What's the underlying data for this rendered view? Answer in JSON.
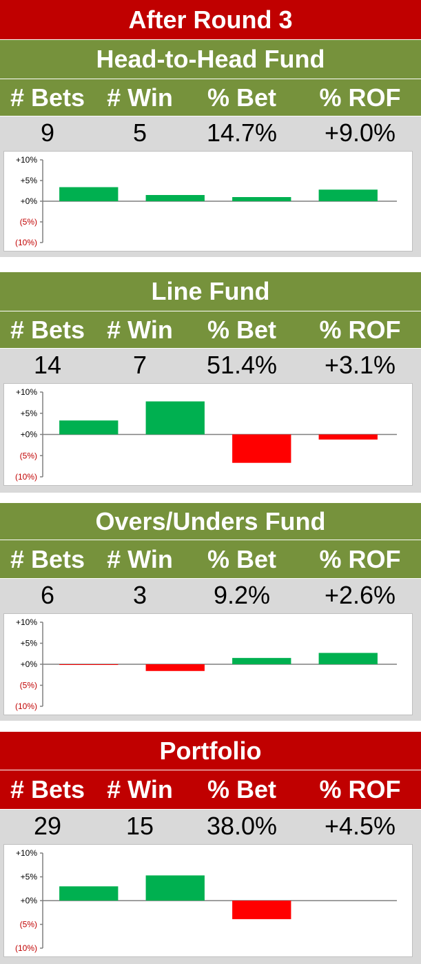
{
  "page_title": "After Round 3",
  "headers": [
    "# Bets",
    "# Win",
    "% Bet",
    "% ROF"
  ],
  "colors": {
    "red_band": "#c00000",
    "green_band": "#76923c",
    "positive_bar": "#00b050",
    "negative_bar": "#ff0000",
    "negative_tick": "#c00000"
  },
  "funds": [
    {
      "title": "Head-to-Head Fund",
      "bets": "9",
      "wins": "5",
      "pct_bet": "14.7%",
      "pct_rof": "+9.0%"
    },
    {
      "title": "Line Fund",
      "bets": "14",
      "wins": "7",
      "pct_bet": "51.4%",
      "pct_rof": "+3.1%"
    },
    {
      "title": "Overs/Unders Fund",
      "bets": "6",
      "wins": "3",
      "pct_bet": "9.2%",
      "pct_rof": "+2.6%"
    },
    {
      "title": "Portfolio",
      "bets": "29",
      "wins": "15",
      "pct_bet": "38.0%",
      "pct_rof": "+4.5%"
    }
  ],
  "chart_data": [
    {
      "type": "bar",
      "series_name": "Head-to-Head Fund",
      "tick_labels": [
        "+10%",
        "+5%",
        "+0%",
        "(5%)",
        "(10%)"
      ],
      "ylim": [
        -10,
        10
      ],
      "values": [
        3.4,
        1.5,
        1.0,
        2.8
      ]
    },
    {
      "type": "bar",
      "series_name": "Line Fund",
      "tick_labels": [
        "+10%",
        "+5%",
        "+0%",
        "(5%)",
        "(10%)"
      ],
      "ylim": [
        -10,
        10
      ],
      "values": [
        3.3,
        7.8,
        -6.7,
        -1.2
      ]
    },
    {
      "type": "bar",
      "series_name": "Overs/Unders Fund",
      "tick_labels": [
        "+10%",
        "+5%",
        "+0%",
        "(5%)",
        "(10%)"
      ],
      "ylim": [
        -10,
        10
      ],
      "values": [
        -0.1,
        -1.6,
        1.5,
        2.7
      ]
    },
    {
      "type": "bar",
      "series_name": "Portfolio",
      "tick_labels": [
        "+10%",
        "+5%",
        "+0%",
        "(5%)",
        "(10%)"
      ],
      "ylim": [
        -10,
        10
      ],
      "values": [
        3.0,
        5.3,
        -3.9,
        0
      ]
    }
  ]
}
